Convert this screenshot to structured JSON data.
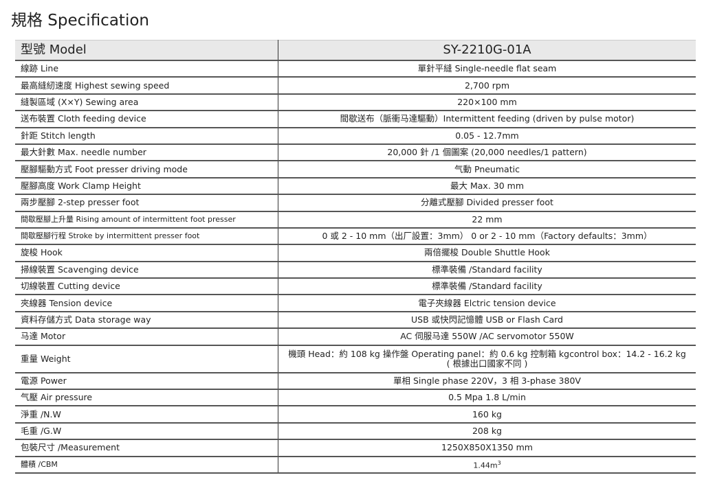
{
  "title": "規格 Specification",
  "header": {
    "label": "型號 Model",
    "value": "SY-2210G-01A"
  },
  "rows": [
    {
      "label": "線跡 Line",
      "value": "單針平縫 Single-needle flat seam"
    },
    {
      "label": "最高縫紉速度 Highest sewing speed",
      "value": "2,700 rpm"
    },
    {
      "label": "縫製區域 (X×Y) Sewing area",
      "value": "220×100 mm"
    },
    {
      "label": "送布裝置 Cloth feeding device",
      "value": "間歇送布（脈衝马達驅動）Intermittent feeding (driven by pulse motor)"
    },
    {
      "label": "針距 Stitch length",
      "value": "0.05 - 12.7mm"
    },
    {
      "label": "最大針數 Max. needle number",
      "value": "20,000 針 /1 個圖案 (20,000 needles/1 pattern)"
    },
    {
      "label": "壓腳驅動方式 Foot presser driving mode",
      "value": "气動 Pneumatic"
    },
    {
      "label": "壓腳高度 Work Clamp Height",
      "value": "最大 Max. 30 mm"
    },
    {
      "label": "兩步壓腳 2-step presser foot",
      "value": "分離式壓腳 Divided presser foot"
    },
    {
      "label": "間歇壓腳上升量 Rising amount of intermittent foot presser",
      "value": "22 mm"
    },
    {
      "label": "間歇壓腳行程 Stroke by intermittent presser foot",
      "value": "0 或 2 - 10 mm（出厂設置：3mm） 0 or 2 - 10 mm（Factory defaults：3mm）"
    },
    {
      "label": "旋梭 Hook",
      "value": "兩倍擺梭 Double Shuttle Hook"
    },
    {
      "label": "掃線裝置 Scavenging device",
      "value": "標準裝備 /Standard facility"
    },
    {
      "label": "切線裝置 Cutting device",
      "value": "標準裝備 /Standard facility"
    },
    {
      "label": "夾線器 Tension device",
      "value": "電子夾線器 Elctric tension device"
    },
    {
      "label": "資料存儲方式 Data storage way",
      "value": "USB 或快閃記憶體 USB or Flash Card"
    },
    {
      "label": "马達 Motor",
      "value": "AC 伺服马達 550W /AC servomotor 550W"
    },
    {
      "label": "重量 Weight",
      "value": "機頭 Head：約 108 kg 操作盤 Operating panel：約 0.6 kg 控制箱 kgcontrol box：14.2 - 16.2 kg",
      "value2": "( 根據出口國家不同 )"
    },
    {
      "label": "電源 Power",
      "value": "單相 Single phase 220V，3 相 3-phase 380V"
    },
    {
      "label": "气壓 Air pressure",
      "value": "0.5 Mpa 1.8 L/min"
    },
    {
      "label": "淨重 /N.W",
      "value": "160 kg"
    },
    {
      "label": "毛重 /G.W",
      "value": "208 kg"
    },
    {
      "label": "包裝尺寸 /Measurement",
      "value": "1250X850X1350 mm"
    },
    {
      "label": "體積 /CBM",
      "value": "1.44m",
      "sup": "3"
    }
  ]
}
